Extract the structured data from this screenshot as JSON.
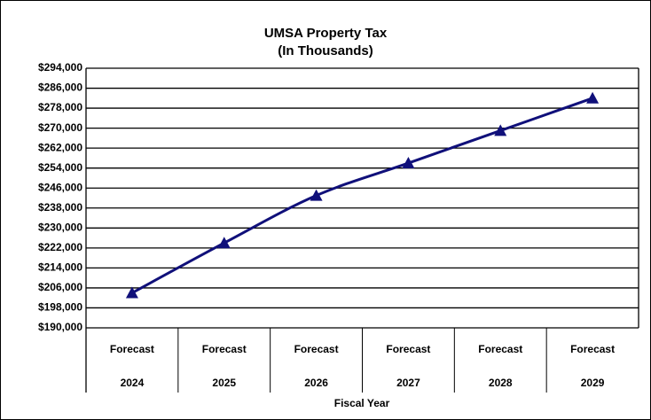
{
  "chart_data": {
    "type": "line",
    "title": "UMSA Property Tax",
    "subtitle": "(In Thousands)",
    "x_label": "Fiscal Year",
    "categories": [
      [
        "Forecast",
        "2024"
      ],
      [
        "Forecast",
        "2025"
      ],
      [
        "Forecast",
        "2026"
      ],
      [
        "Forecast",
        "2027"
      ],
      [
        "Forecast",
        "2028"
      ],
      [
        "Forecast",
        "2029"
      ]
    ],
    "series": [
      {
        "name": "UMSA Property Tax",
        "color": "#10107a",
        "values": [
          204000,
          224000,
          243000,
          256000,
          269000,
          282000
        ]
      }
    ],
    "ylim": [
      190000,
      294000
    ],
    "yticks": [
      {
        "value": 190000,
        "label": "$190,000"
      },
      {
        "value": 198000,
        "label": "$198,000"
      },
      {
        "value": 206000,
        "label": "$206,000"
      },
      {
        "value": 214000,
        "label": "$214,000"
      },
      {
        "value": 222000,
        "label": "$222,000"
      },
      {
        "value": 230000,
        "label": "$230,000"
      },
      {
        "value": 238000,
        "label": "$238,000"
      },
      {
        "value": 246000,
        "label": "$246,000"
      },
      {
        "value": 254000,
        "label": "$254,000"
      },
      {
        "value": 262000,
        "label": "$262,000"
      },
      {
        "value": 270000,
        "label": "$270,000"
      },
      {
        "value": 278000,
        "label": "$278,000"
      },
      {
        "value": 286000,
        "label": "$286,000"
      },
      {
        "value": 294000,
        "label": "$294,000"
      }
    ],
    "grid": true
  }
}
